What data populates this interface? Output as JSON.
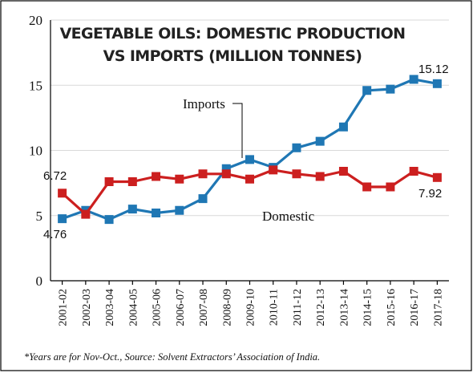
{
  "chart_data": {
    "type": "line",
    "title_lines": [
      "VEGETABLE OILS: DOMESTIC PRODUCTION",
      "VS IMPORTS (MILLION TONNES)"
    ],
    "xlabel": "",
    "ylabel": "",
    "ylim": [
      0,
      20
    ],
    "yticks": [
      0,
      5,
      10,
      15,
      20
    ],
    "grid": true,
    "categories": [
      "2001-02",
      "2002-03",
      "2003-04",
      "2004-05",
      "2005-06",
      "2006-07",
      "2007-08",
      "2008-09",
      "2009-10",
      "2010-11",
      "2011-12",
      "2012-13",
      "2013-14",
      "2014-15",
      "2015-16",
      "2016-17",
      "2017-18"
    ],
    "series": [
      {
        "name": "Imports",
        "color": "#1f77b4",
        "marker": "square",
        "values": [
          4.76,
          5.4,
          4.7,
          5.5,
          5.2,
          5.4,
          6.3,
          8.6,
          9.3,
          8.7,
          10.2,
          10.7,
          11.8,
          14.6,
          14.7,
          15.45,
          15.12
        ]
      },
      {
        "name": "Domestic",
        "color": "#cc1f1f",
        "marker": "square",
        "values": [
          6.72,
          5.1,
          7.6,
          7.6,
          8.0,
          7.8,
          8.2,
          8.2,
          7.8,
          8.5,
          8.2,
          8.0,
          8.4,
          7.2,
          7.2,
          8.4,
          7.92
        ]
      }
    ],
    "annotations": {
      "imports_start": "4.76",
      "imports_end": "15.12",
      "domestic_start": "6.72",
      "domestic_end": "7.92"
    },
    "footnote": "*Years are for Nov-Oct., Source: Solvent Extractors’ Association of India."
  }
}
